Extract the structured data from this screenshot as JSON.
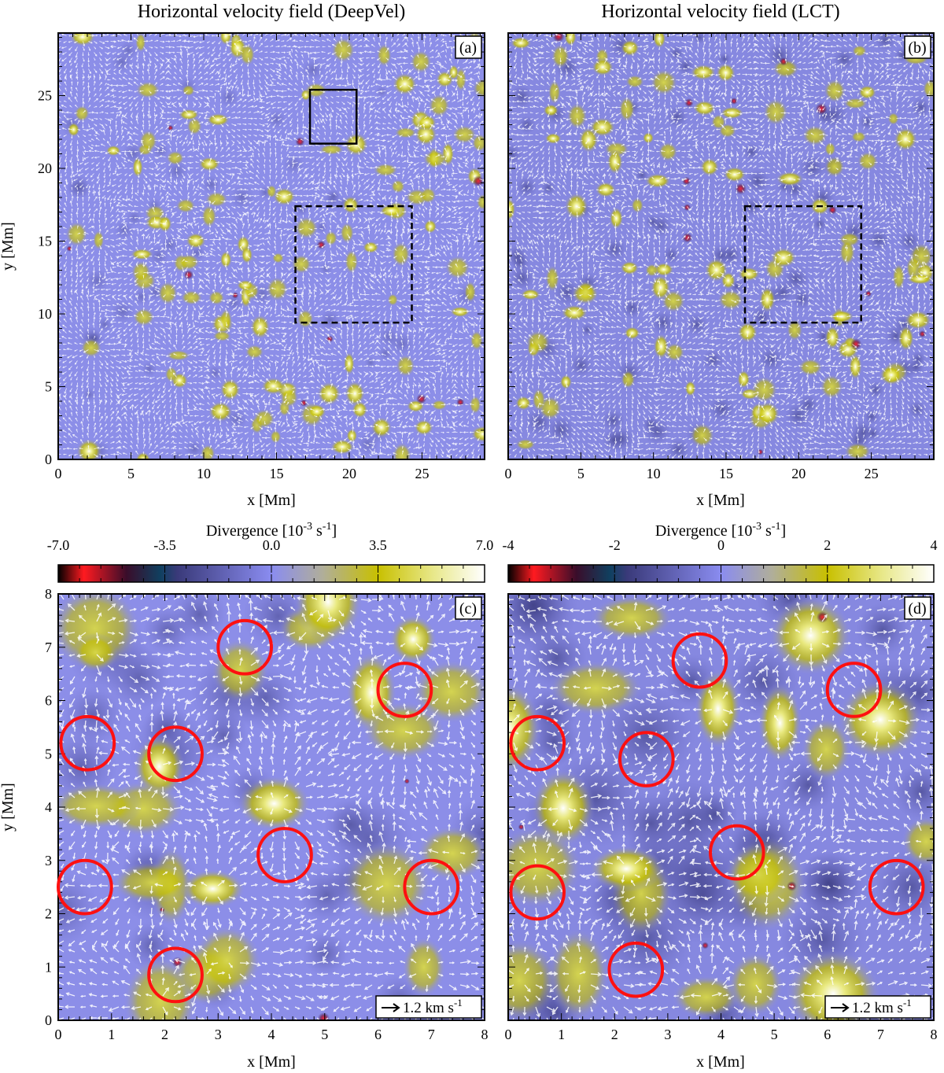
{
  "figure": {
    "title_a": "Horizontal velocity field (DeepVel)",
    "title_b": "Horizontal velocity field (LCT)"
  },
  "panels": {
    "a": {
      "label": "(a)",
      "xlabel": "x [Mm]",
      "ylabel": "y [Mm]",
      "xticks": [
        "0",
        "5",
        "10",
        "15",
        "20",
        "25"
      ],
      "yticks": [
        "0",
        "5",
        "10",
        "15",
        "20",
        "25"
      ],
      "xlim": [
        0,
        29.3
      ],
      "ylim": [
        0,
        29.3
      ]
    },
    "b": {
      "label": "(b)",
      "xlabel": "x [Mm]",
      "xticks": [
        "0",
        "5",
        "10",
        "15",
        "20",
        "25"
      ],
      "xlim": [
        0,
        29.3
      ],
      "ylim": [
        0,
        29.3
      ]
    },
    "c": {
      "label": "(c)",
      "xlabel": "x [Mm]",
      "ylabel": "y [Mm]",
      "xticks": [
        "0",
        "1",
        "2",
        "3",
        "4",
        "5",
        "6",
        "7",
        "8"
      ],
      "yticks": [
        "0",
        "1",
        "2",
        "3",
        "4",
        "5",
        "6",
        "7",
        "8"
      ],
      "xlim": [
        0,
        8
      ],
      "ylim": [
        0,
        8
      ],
      "scale_text": "1.2 km s",
      "scale_exp": "-1"
    },
    "d": {
      "label": "(d)",
      "xlabel": "x [Mm]",
      "xticks": [
        "0",
        "1",
        "2",
        "3",
        "4",
        "5",
        "6",
        "7",
        "8"
      ],
      "xlim": [
        0,
        8
      ],
      "ylim": [
        0,
        8
      ],
      "scale_text": "1.2 km s",
      "scale_exp": "-1"
    }
  },
  "colorbars": {
    "c": {
      "label": "Divergence [10",
      "label_exp1": "-3",
      "label_mid": " s",
      "label_exp2": "-1",
      "label_end": "]",
      "ticks": [
        "-7.0",
        "-3.5",
        "0.0",
        "3.5",
        "7.0"
      ],
      "range": [
        -7,
        7
      ]
    },
    "d": {
      "label": "Divergence [10",
      "label_exp1": "-3",
      "label_mid": " s",
      "label_exp2": "-1",
      "label_end": "]",
      "ticks": [
        "-4",
        "-2",
        "0",
        "2",
        "4"
      ],
      "range": [
        -4,
        4
      ]
    }
  },
  "chart_data": [
    {
      "type": "heatmap",
      "panel": "a",
      "title": "Horizontal velocity field (DeepVel)",
      "xlabel": "x [Mm]",
      "ylabel": "y [Mm]",
      "xlim": [
        0,
        29.3
      ],
      "ylim": [
        0,
        29.3
      ],
      "overlays": [
        {
          "kind": "box",
          "style": "solid",
          "x": [
            17.3,
            20.5
          ],
          "y": [
            21.7,
            25.4
          ]
        },
        {
          "kind": "box",
          "style": "dashed",
          "x": [
            16.3,
            24.3
          ],
          "y": [
            9.4,
            17.4
          ]
        }
      ]
    },
    {
      "type": "heatmap",
      "panel": "b",
      "title": "Horizontal velocity field (LCT)",
      "xlabel": "x [Mm]",
      "xlim": [
        0,
        29.3
      ],
      "ylim": [
        0,
        29.3
      ],
      "overlays": [
        {
          "kind": "box",
          "style": "dashed",
          "x": [
            16.3,
            24.3
          ],
          "y": [
            9.4,
            17.4
          ]
        }
      ]
    },
    {
      "type": "heatmap",
      "panel": "c",
      "xlabel": "x [Mm]",
      "ylabel": "y [Mm]",
      "xlim": [
        0,
        8
      ],
      "ylim": [
        0,
        8
      ],
      "circles_xy": [
        [
          3.5,
          7.0
        ],
        [
          6.5,
          6.2
        ],
        [
          0.55,
          5.2
        ],
        [
          2.2,
          5.0
        ],
        [
          4.25,
          3.1
        ],
        [
          0.5,
          2.5
        ],
        [
          7.0,
          2.5
        ],
        [
          2.2,
          0.85
        ]
      ],
      "circle_radius": 0.5
    },
    {
      "type": "heatmap",
      "panel": "d",
      "xlabel": "x [Mm]",
      "xlim": [
        0,
        8
      ],
      "ylim": [
        0,
        8
      ],
      "circles_xy": [
        [
          3.6,
          6.75
        ],
        [
          6.5,
          6.2
        ],
        [
          0.55,
          5.2
        ],
        [
          2.6,
          4.9
        ],
        [
          4.3,
          3.15
        ],
        [
          0.55,
          2.4
        ],
        [
          7.3,
          2.5
        ],
        [
          2.4,
          0.95
        ]
      ],
      "circle_radius": 0.5
    }
  ]
}
